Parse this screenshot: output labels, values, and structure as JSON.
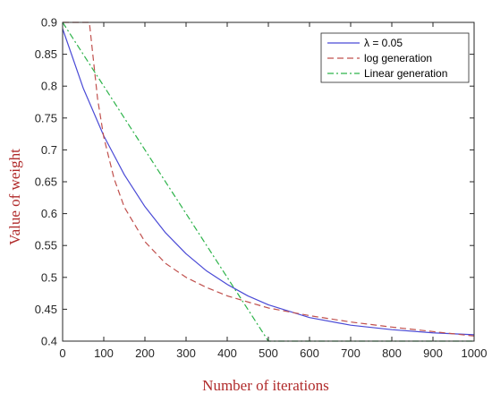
{
  "chart_data": {
    "type": "line",
    "title": "",
    "xlabel": "Number of iterations",
    "ylabel": "Value of weight",
    "xlim": [
      0,
      1000
    ],
    "ylim": [
      0.4,
      0.9
    ],
    "xticks": [
      0,
      100,
      200,
      300,
      400,
      500,
      600,
      700,
      800,
      900,
      1000
    ],
    "yticks": [
      0.4,
      0.45,
      0.5,
      0.55,
      0.6,
      0.65,
      0.7,
      0.75,
      0.8,
      0.85,
      0.9
    ],
    "grid": false,
    "legend_position": "top-right",
    "label_color": "#b02a2a",
    "series": [
      {
        "name": "λ = 0.05",
        "style": "solid",
        "color": "#4a4ad6",
        "x": [
          0,
          50,
          100,
          150,
          200,
          250,
          300,
          350,
          400,
          450,
          500,
          600,
          700,
          800,
          900,
          1000
        ],
        "y": [
          0.89,
          0.797,
          0.722,
          0.661,
          0.611,
          0.57,
          0.537,
          0.51,
          0.489,
          0.471,
          0.457,
          0.437,
          0.425,
          0.418,
          0.413,
          0.41
        ]
      },
      {
        "name": "log generation",
        "style": "dashed",
        "color": "#c0504d",
        "x": [
          0,
          65,
          75,
          85,
          100,
          125,
          150,
          200,
          250,
          300,
          350,
          400,
          500,
          600,
          700,
          800,
          900,
          1000
        ],
        "y": [
          0.9,
          0.9,
          0.84,
          0.78,
          0.72,
          0.655,
          0.61,
          0.556,
          0.522,
          0.5,
          0.484,
          0.471,
          0.452,
          0.44,
          0.43,
          0.422,
          0.415,
          0.408
        ]
      },
      {
        "name": "Linear generation",
        "style": "dashdot",
        "color": "#2db34a",
        "x": [
          0,
          500,
          1000
        ],
        "y": [
          0.9,
          0.4,
          0.4
        ]
      }
    ]
  }
}
